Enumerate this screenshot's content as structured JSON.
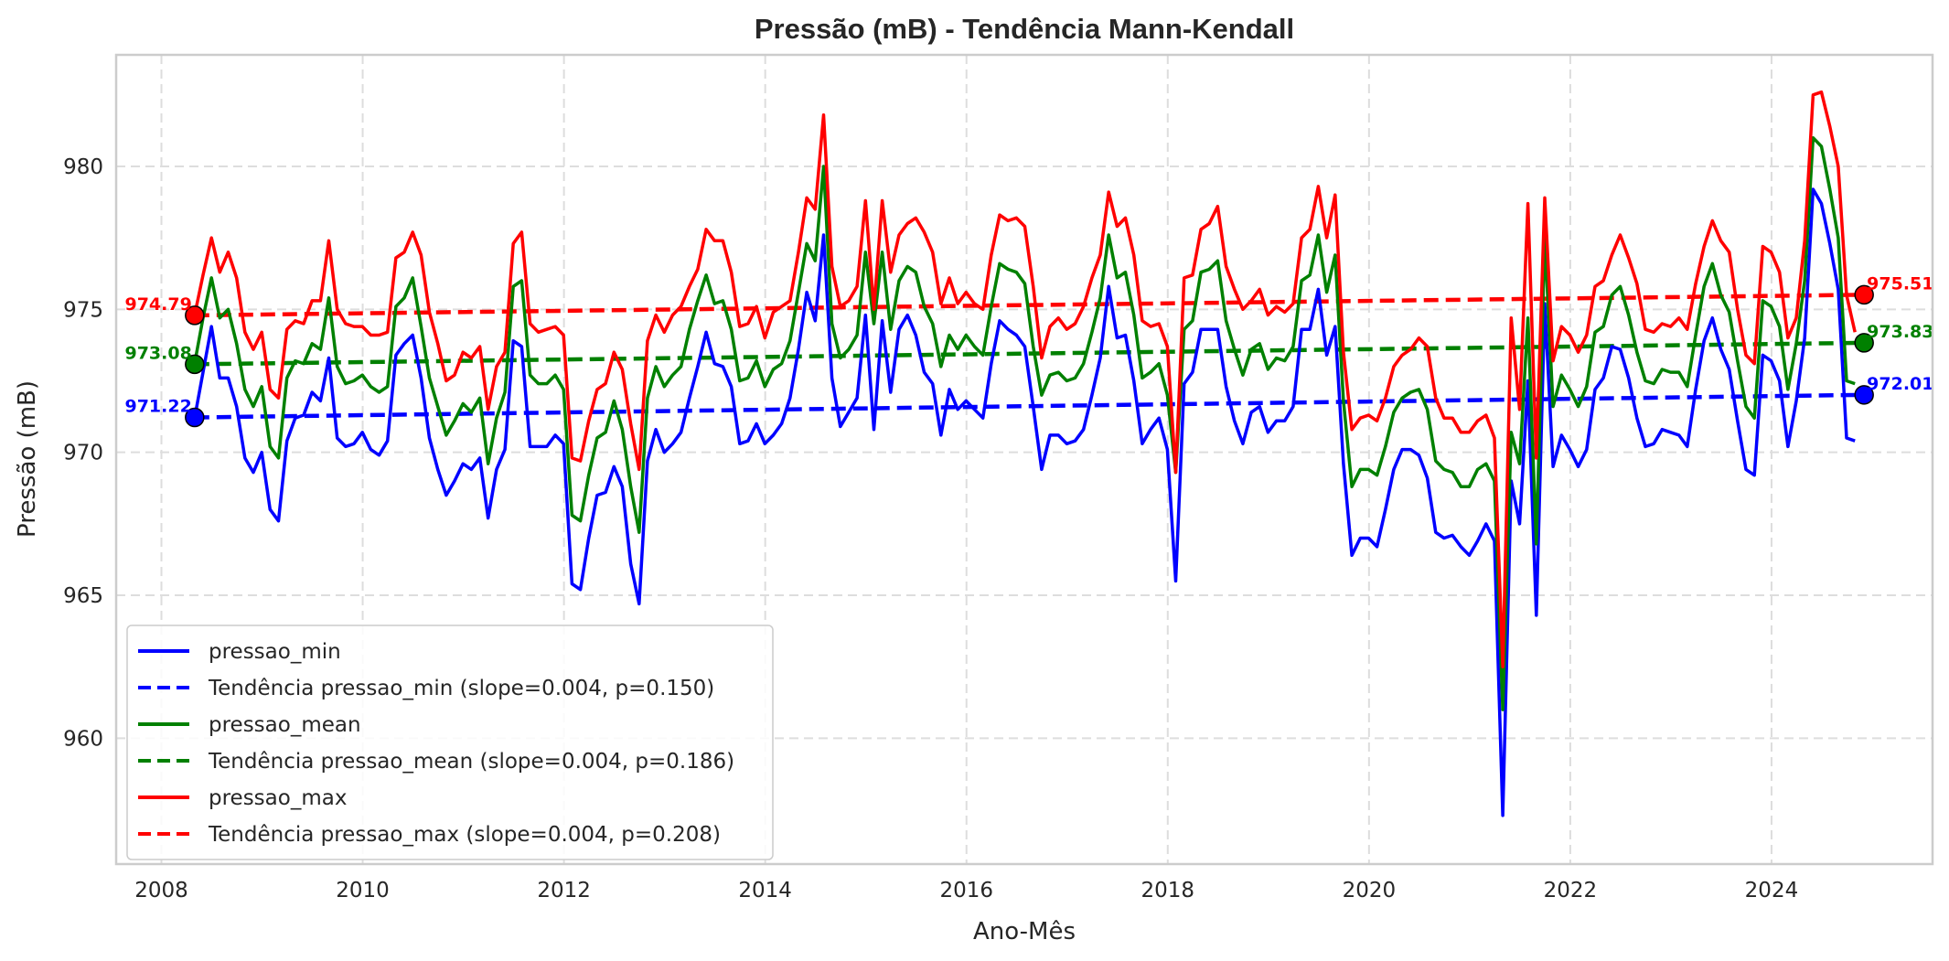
{
  "chart_data": {
    "type": "line",
    "title": "Pressão (mB) - Tendência Mann-Kendall",
    "xlabel": "Ano-Mês",
    "ylabel": "Pressão (mB)",
    "xlim": [
      2007.55,
      2025.6
    ],
    "ylim": [
      955.6,
      983.9
    ],
    "x_ticks": [
      2008,
      2010,
      2012,
      2014,
      2016,
      2018,
      2020,
      2022,
      2024
    ],
    "y_ticks": [
      960,
      965,
      970,
      975,
      980
    ],
    "grid": true,
    "legend_position": "lower-left",
    "x_start": 2008.33,
    "x_step": 0.08333,
    "series": [
      {
        "name": "pressao_min",
        "color": "#0000ff",
        "values": [
          971.2,
          972.8,
          974.4,
          972.6,
          972.6,
          971.6,
          969.8,
          969.3,
          970.0,
          968.0,
          967.6,
          970.4,
          971.2,
          971.3,
          972.1,
          971.8,
          973.3,
          970.5,
          970.2,
          970.3,
          970.7,
          970.1,
          969.9,
          970.4,
          973.4,
          973.8,
          974.1,
          972.6,
          970.5,
          969.4,
          968.5,
          969.0,
          969.6,
          969.4,
          969.8,
          967.7,
          969.4,
          970.1,
          973.9,
          973.7,
          970.2,
          970.2,
          970.2,
          970.6,
          970.3,
          965.4,
          965.2,
          967.0,
          968.5,
          968.6,
          969.5,
          968.8,
          966.1,
          964.7,
          969.7,
          970.8,
          970.0,
          970.3,
          970.7,
          971.9,
          973.0,
          974.2,
          973.1,
          973.0,
          972.3,
          970.3,
          970.4,
          971.0,
          970.3,
          970.6,
          971.0,
          971.9,
          973.6,
          975.6,
          974.6,
          977.6,
          972.6,
          970.9,
          971.4,
          971.9,
          974.8,
          970.8,
          974.6,
          972.1,
          974.3,
          974.8,
          974.1,
          972.8,
          972.4,
          970.6,
          972.2,
          971.5,
          971.8,
          971.5,
          971.2,
          973.1,
          974.6,
          974.3,
          974.1,
          973.7,
          971.6,
          969.4,
          970.6,
          970.6,
          970.3,
          970.4,
          970.8,
          972.0,
          973.3,
          975.8,
          974.0,
          974.1,
          972.5,
          970.3,
          970.8,
          971.2,
          970.1,
          965.5,
          972.4,
          972.8,
          974.3,
          974.3,
          974.3,
          972.3,
          971.1,
          970.3,
          971.4,
          971.6,
          970.7,
          971.1,
          971.1,
          971.6,
          974.3,
          974.3,
          975.7,
          973.4,
          974.4,
          969.6,
          966.4,
          967.0,
          967.0,
          966.7,
          968.0,
          969.4,
          970.1,
          970.1,
          969.9,
          969.1,
          967.2,
          967.0,
          967.1,
          966.7,
          966.4,
          966.9,
          967.5,
          966.9,
          957.3,
          969.0,
          967.5,
          972.5,
          964.3,
          975.2,
          969.5,
          970.6,
          970.1,
          969.5,
          970.1,
          972.2,
          972.6,
          973.7,
          973.6,
          972.6,
          971.2,
          970.2,
          970.3,
          970.8,
          970.7,
          970.6,
          970.2,
          972.2,
          973.9,
          974.7,
          973.6,
          972.9,
          971.1,
          969.4,
          969.2,
          973.4,
          973.2,
          972.5,
          970.2,
          971.8,
          974.0,
          979.2,
          978.7,
          977.3,
          975.7,
          970.5,
          970.4
        ]
      },
      {
        "name": "pressao_mean",
        "color": "#008000",
        "values": [
          973.1,
          974.7,
          976.1,
          974.7,
          975.0,
          973.8,
          972.2,
          971.6,
          972.3,
          970.2,
          969.8,
          972.6,
          973.2,
          973.1,
          973.8,
          973.6,
          975.4,
          973.0,
          972.4,
          972.5,
          972.7,
          972.3,
          972.1,
          972.3,
          975.1,
          975.4,
          976.1,
          974.4,
          972.6,
          971.6,
          970.6,
          971.1,
          971.7,
          971.4,
          971.9,
          969.6,
          971.2,
          972.1,
          975.8,
          976.0,
          972.7,
          972.4,
          972.4,
          972.7,
          972.2,
          967.8,
          967.6,
          969.2,
          970.5,
          970.7,
          971.8,
          970.8,
          968.8,
          967.2,
          971.9,
          973.0,
          972.3,
          972.7,
          973.0,
          974.3,
          975.3,
          976.2,
          975.2,
          975.3,
          974.3,
          972.5,
          972.6,
          973.2,
          972.3,
          972.9,
          973.1,
          973.9,
          975.6,
          977.3,
          976.7,
          980.0,
          974.5,
          973.3,
          973.6,
          974.1,
          977.0,
          974.5,
          977.0,
          974.3,
          976.0,
          976.5,
          976.3,
          975.1,
          974.5,
          973.0,
          974.1,
          973.6,
          974.1,
          973.7,
          973.4,
          975.1,
          976.6,
          976.4,
          976.3,
          975.9,
          973.7,
          972.0,
          972.7,
          972.8,
          972.5,
          972.6,
          973.1,
          974.2,
          975.4,
          977.6,
          976.1,
          976.3,
          974.8,
          972.6,
          972.8,
          973.1,
          972.0,
          969.3,
          974.3,
          974.6,
          976.3,
          976.4,
          976.7,
          974.6,
          973.6,
          972.7,
          973.6,
          973.8,
          972.9,
          973.3,
          973.2,
          973.7,
          976.0,
          976.2,
          977.6,
          975.6,
          976.9,
          971.8,
          968.8,
          969.4,
          969.4,
          969.2,
          970.2,
          971.4,
          971.9,
          972.1,
          972.2,
          971.5,
          969.7,
          969.4,
          969.3,
          968.8,
          968.8,
          969.4,
          969.6,
          969.0,
          961.0,
          970.7,
          969.6,
          974.7,
          966.8,
          977.5,
          971.6,
          972.7,
          972.2,
          971.6,
          972.3,
          974.2,
          974.4,
          975.5,
          975.8,
          974.8,
          973.5,
          972.5,
          972.4,
          972.9,
          972.8,
          972.8,
          972.3,
          974.1,
          975.8,
          976.6,
          975.5,
          974.9,
          973.2,
          971.6,
          971.2,
          975.3,
          975.1,
          974.4,
          972.2,
          973.8,
          976.0,
          981.0,
          980.7,
          979.2,
          977.5,
          972.5,
          972.4
        ]
      },
      {
        "name": "pressao_max",
        "color": "#ff0000",
        "values": [
          974.8,
          976.2,
          977.5,
          976.3,
          977.0,
          976.1,
          974.2,
          973.6,
          974.2,
          972.2,
          971.9,
          974.3,
          974.6,
          974.5,
          975.3,
          975.3,
          977.4,
          975.0,
          974.5,
          974.4,
          974.4,
          974.1,
          974.1,
          974.2,
          976.8,
          977.0,
          977.7,
          976.9,
          974.9,
          973.8,
          972.5,
          972.7,
          973.5,
          973.3,
          973.7,
          971.5,
          973.0,
          973.5,
          977.3,
          977.7,
          974.5,
          974.2,
          974.3,
          974.4,
          974.1,
          969.8,
          969.7,
          971.1,
          972.2,
          972.4,
          973.5,
          972.9,
          971.0,
          969.4,
          973.9,
          974.8,
          974.2,
          974.8,
          975.1,
          975.8,
          976.4,
          977.8,
          977.4,
          977.4,
          976.3,
          974.4,
          974.5,
          975.1,
          974.0,
          974.9,
          975.1,
          975.3,
          977.0,
          978.9,
          978.5,
          981.8,
          976.5,
          975.1,
          975.3,
          975.8,
          978.8,
          975.0,
          978.8,
          976.3,
          977.6,
          978.0,
          978.2,
          977.7,
          977.0,
          975.2,
          976.1,
          975.2,
          975.6,
          975.2,
          975.0,
          976.9,
          978.3,
          978.1,
          978.2,
          977.9,
          975.8,
          973.3,
          974.4,
          974.7,
          974.3,
          974.5,
          975.1,
          976.1,
          976.9,
          979.1,
          977.9,
          978.2,
          976.9,
          974.6,
          974.4,
          974.5,
          973.7,
          969.3,
          976.1,
          976.2,
          977.8,
          978.0,
          978.6,
          976.5,
          975.7,
          975.0,
          975.3,
          975.7,
          974.8,
          975.1,
          974.9,
          975.2,
          977.5,
          977.8,
          979.3,
          977.5,
          979.0,
          973.5,
          970.8,
          971.2,
          971.3,
          971.1,
          971.9,
          973.0,
          973.4,
          973.6,
          974.0,
          973.7,
          971.9,
          971.2,
          971.2,
          970.7,
          970.7,
          971.1,
          971.3,
          970.5,
          962.5,
          974.7,
          971.5,
          978.7,
          969.8,
          978.9,
          973.2,
          974.4,
          974.1,
          973.5,
          974.1,
          975.8,
          976.0,
          976.9,
          977.6,
          976.8,
          975.9,
          974.3,
          974.2,
          974.5,
          974.4,
          974.7,
          974.3,
          975.9,
          977.2,
          978.1,
          977.4,
          977.0,
          975.0,
          973.4,
          973.1,
          977.2,
          977.0,
          976.3,
          974.0,
          974.7,
          977.4,
          982.5,
          982.6,
          981.4,
          980.0,
          975.5,
          974.2
        ]
      }
    ],
    "trends": [
      {
        "name": "Tendência pressao_min (slope=0.004, p=0.150)",
        "color": "#0000ff",
        "x": [
          2008.33,
          2024.92
        ],
        "y": [
          971.22,
          972.01
        ],
        "start_label": "971.22",
        "end_label": "972.01"
      },
      {
        "name": "Tendência pressao_mean (slope=0.004, p=0.186)",
        "color": "#008000",
        "x": [
          2008.33,
          2024.92
        ],
        "y": [
          973.08,
          973.83
        ],
        "start_label": "973.08",
        "end_label": "973.83"
      },
      {
        "name": "Tendência pressao_max (slope=0.004, p=0.208)",
        "color": "#ff0000",
        "x": [
          2008.33,
          2024.92
        ],
        "y": [
          974.79,
          975.51
        ],
        "start_label": "974.79",
        "end_label": "975.51"
      }
    ],
    "legend": [
      {
        "label": "pressao_min",
        "color": "#0000ff",
        "style": "solid"
      },
      {
        "label": "Tendência pressao_min (slope=0.004, p=0.150)",
        "color": "#0000ff",
        "style": "dashed"
      },
      {
        "label": "pressao_mean",
        "color": "#008000",
        "style": "solid"
      },
      {
        "label": "Tendência pressao_mean (slope=0.004, p=0.186)",
        "color": "#008000",
        "style": "dashed"
      },
      {
        "label": "pressao_max",
        "color": "#ff0000",
        "style": "solid"
      },
      {
        "label": "Tendência pressao_max (slope=0.004, p=0.208)",
        "color": "#ff0000",
        "style": "dashed"
      }
    ]
  }
}
